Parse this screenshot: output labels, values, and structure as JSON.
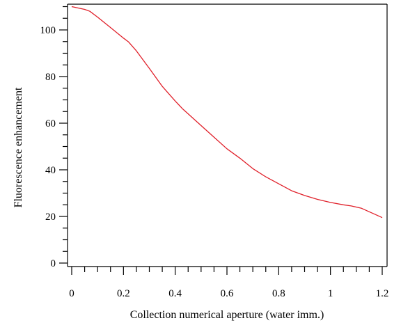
{
  "chart_data": {
    "type": "line",
    "title": "",
    "xlabel": "Collection numerical aperture (water imm.)",
    "ylabel": "Fluorescence enhancement",
    "xlim": [
      0,
      1.2
    ],
    "ylim": [
      0,
      110
    ],
    "x_ticks": [
      "0",
      "0.2",
      "0.4",
      "0.6",
      "0.8",
      "1",
      "1.2"
    ],
    "y_ticks": [
      "0",
      "20",
      "40",
      "60",
      "80",
      "100"
    ],
    "grid": false,
    "line_color": "#e0202a",
    "series": [
      {
        "x": [
          0,
          0.05,
          0.07,
          0.1,
          0.15,
          0.2,
          0.22,
          0.25,
          0.3,
          0.35,
          0.4,
          0.43,
          0.45,
          0.5,
          0.55,
          0.6,
          0.65,
          0.7,
          0.75,
          0.8,
          0.85,
          0.9,
          0.95,
          1.0,
          1.05,
          1.08,
          1.12,
          1.15,
          1.18,
          1.2
        ],
        "y": [
          110,
          108.8,
          108,
          105.5,
          101,
          96.5,
          94.8,
          91,
          83.5,
          75.8,
          69.5,
          66,
          64,
          59,
          54,
          49,
          45,
          40.5,
          37,
          34,
          31,
          29,
          27.3,
          26,
          25,
          24.5,
          23.5,
          22,
          20.5,
          19.5
        ]
      }
    ]
  }
}
